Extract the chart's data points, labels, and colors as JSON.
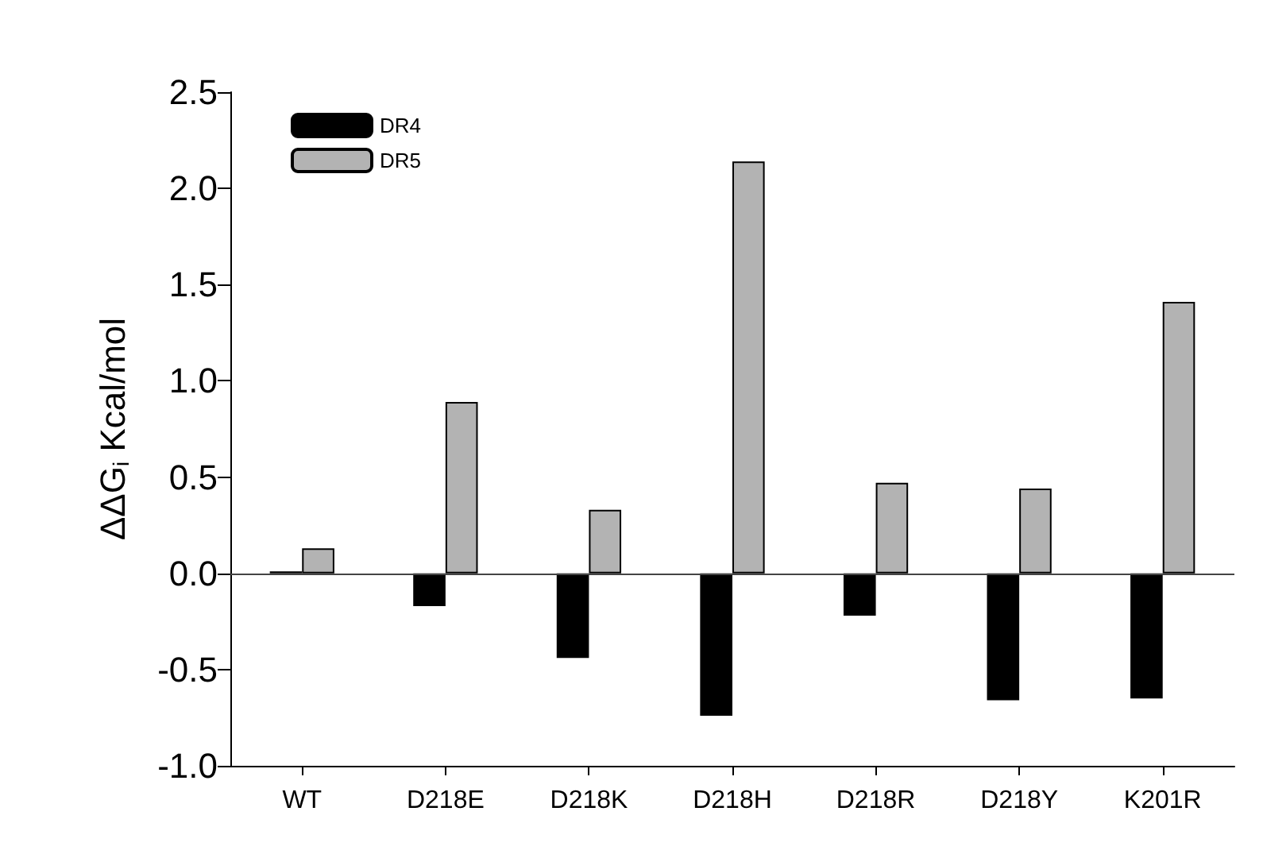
{
  "chart_data": {
    "type": "bar",
    "ylabel": "ΔΔG$_{i}$ Kcal/mol",
    "categories": [
      "WT",
      "D218E",
      "D218K",
      "D218H",
      "D218R",
      "D218Y",
      "K201R"
    ],
    "series": [
      {
        "name": "DR4",
        "color": "#000000",
        "values": [
          0.01,
          -0.17,
          -0.44,
          -0.74,
          -0.22,
          -0.66,
          -0.65
        ]
      },
      {
        "name": "DR5",
        "color": "#b3b3b3",
        "values": [
          0.13,
          0.89,
          0.33,
          2.14,
          0.47,
          0.44,
          1.41
        ]
      }
    ],
    "ylim": [
      -1.0,
      2.5
    ],
    "yticks": [
      {
        "value": -1,
        "label": "-1.0"
      },
      {
        "value": -0.5,
        "label": "-0.5"
      },
      {
        "value": 0,
        "label": "0.0"
      },
      {
        "value": 0.5,
        "label": "0.5"
      },
      {
        "value": 1,
        "label": "1.0"
      },
      {
        "value": 1.5,
        "label": "1.5"
      },
      {
        "value": 2,
        "label": "2.0"
      },
      {
        "value": 2.5,
        "label": "2.5"
      }
    ],
    "ref_lines": [
      {
        "axis": "y",
        "value": 0
      }
    ],
    "legend": "top left",
    "grid": false
  }
}
